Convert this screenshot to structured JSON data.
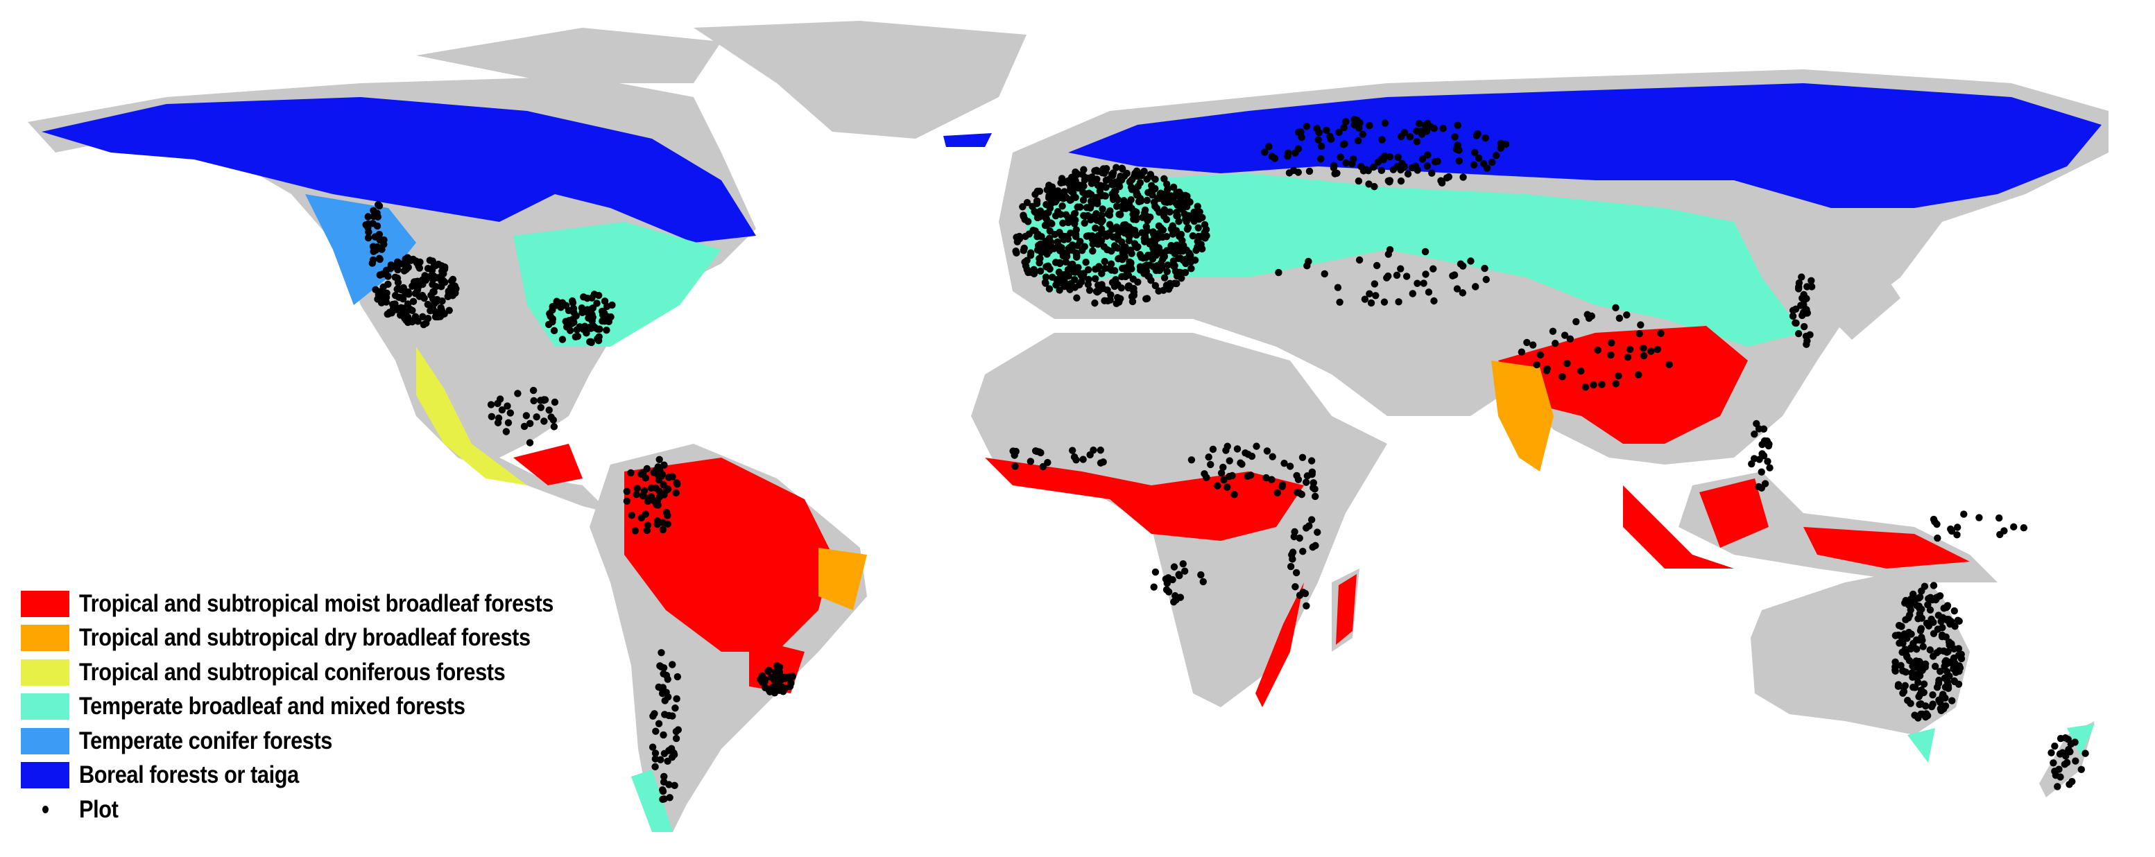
{
  "map": {
    "land_color": "#c8c8c8",
    "plot_color": "#000000",
    "legend": {
      "items": [
        {
          "label": "Tropical and subtropical moist broadleaf forests",
          "color": "#ff0000"
        },
        {
          "label": "Tropical and subtropical dry broadleaf forests",
          "color": "#ffa500"
        },
        {
          "label": "Tropical and subtropical coniferous forests",
          "color": "#e6f046"
        },
        {
          "label": "Temperate broadleaf and mixed forests",
          "color": "#66f5cc"
        },
        {
          "label": "Temperate conifer forests",
          "color": "#3c9bf5"
        },
        {
          "label": "Boreal forests or taiga",
          "color": "#0a14f0"
        }
      ],
      "plot_label": "Plot",
      "plot_icon": "dot"
    }
  }
}
